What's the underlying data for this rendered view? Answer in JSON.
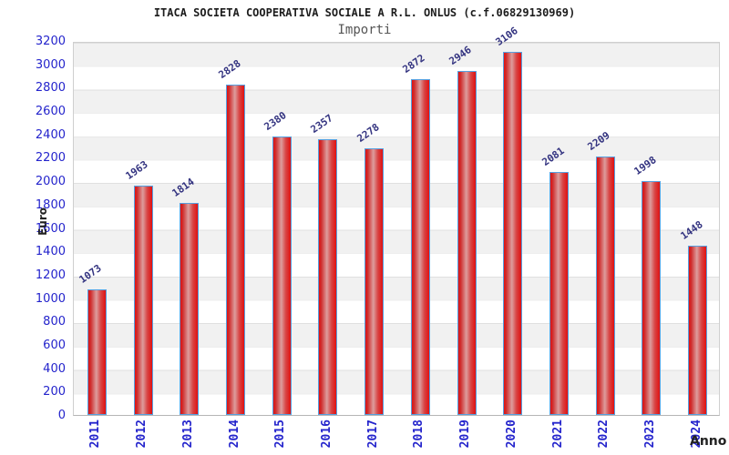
{
  "header": {
    "title": "ITACA SOCIETA COOPERATIVA SOCIALE A R.L. ONLUS (c.f.06829130969)",
    "subtitle": "Importi"
  },
  "chart_data": {
    "type": "bar",
    "title": "ITACA SOCIETA COOPERATIVA SOCIALE A R.L. ONLUS (c.f.06829130969)",
    "subtitle": "Importi",
    "xlabel": "Anno",
    "ylabel": "Euro",
    "categories": [
      "2011",
      "2012",
      "2013",
      "2014",
      "2015",
      "2016",
      "2017",
      "2018",
      "2019",
      "2020",
      "2021",
      "2022",
      "2023",
      "2024"
    ],
    "values": [
      1073,
      1963,
      1814,
      2828,
      2380,
      2357,
      2278,
      2872,
      2946,
      3106,
      2081,
      2209,
      1998,
      1448
    ],
    "ylim": [
      0,
      3200
    ],
    "ytick_step": 200,
    "yticks": [
      0,
      200,
      400,
      600,
      800,
      1000,
      1200,
      1400,
      1600,
      1800,
      2000,
      2200,
      2400,
      2600,
      2800,
      3000,
      3200
    ],
    "grid": "horizontal-bands",
    "legend_position": "none",
    "colors": {
      "bar_fill": "#e01111",
      "bar_fill_highlight": "#dd9d9d",
      "bar_border": "#55a0e0",
      "value_label": "#333380",
      "tick_label": "#2424cc",
      "axis_title": "#222222",
      "title": "#1c1c1c",
      "subtitle": "#555555",
      "band_gray": "#f1f1f1",
      "band_white": "#ffffff"
    }
  }
}
